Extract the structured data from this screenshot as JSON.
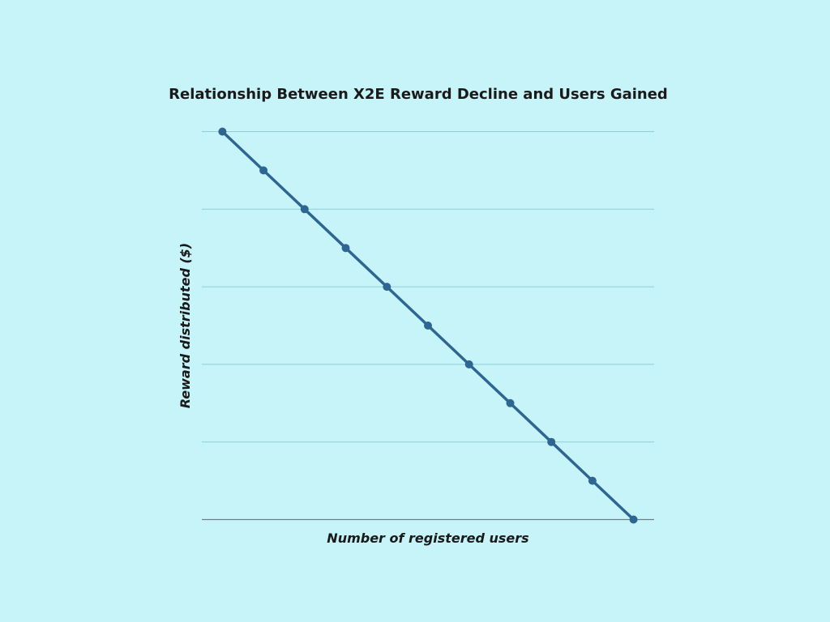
{
  "chart_data": {
    "type": "line",
    "title": "Relationship Between X2E Reward Decline and Users Gained",
    "xlabel": "Number of registered users",
    "ylabel": "Reward distributed ($)",
    "x": [
      0,
      1,
      2,
      3,
      4,
      5,
      6,
      7,
      8,
      9,
      10
    ],
    "xlim": [
      -0.5,
      10.5
    ],
    "ylim": [
      0,
      100
    ],
    "y_gridlines": [
      0,
      20,
      40,
      60,
      80,
      100
    ],
    "grid": true,
    "legend": "none",
    "series": [
      {
        "name": "Reward distributed",
        "values": [
          100,
          90,
          80,
          70,
          60,
          50,
          40,
          30,
          20,
          10,
          0
        ],
        "color": "#2e6693"
      }
    ]
  }
}
